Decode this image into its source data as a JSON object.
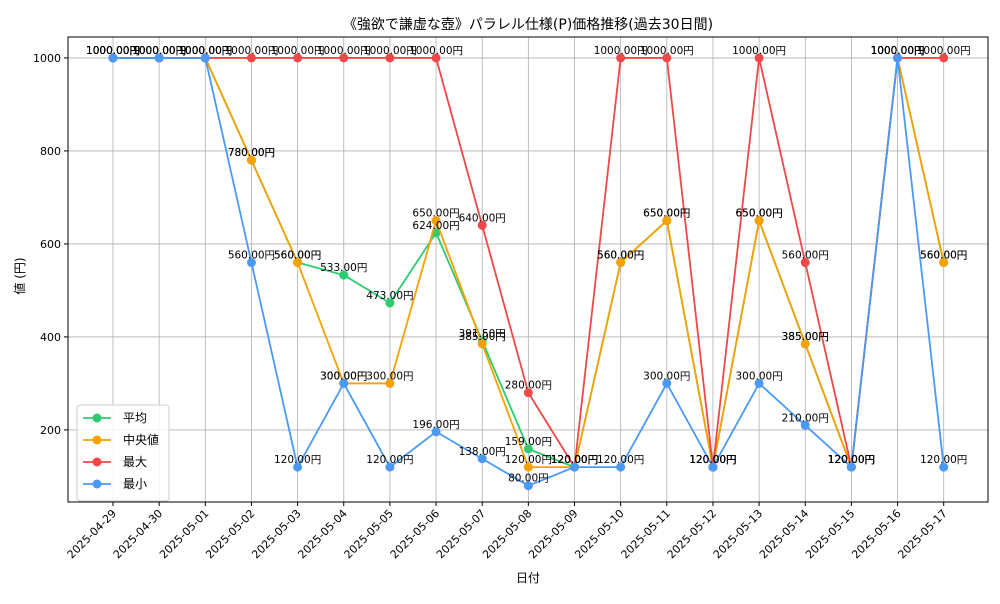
{
  "chart_data": {
    "type": "line",
    "title": "《強欲で謙虚な壺》パラレル仕様(P)価格推移(過去30日間)",
    "xlabel": "日付",
    "ylabel": "値 (円)",
    "ylim": [
      45,
      1045
    ],
    "yticks": [
      200,
      400,
      600,
      800,
      1000
    ],
    "grid": true,
    "legend_position": "bottom-left",
    "value_suffix": "円",
    "categories": [
      "2025-04-29",
      "2025-04-30",
      "2025-05-01",
      "2025-05-02",
      "2025-05-03",
      "2025-05-04",
      "2025-05-05",
      "2025-05-06",
      "2025-05-07",
      "2025-05-08",
      "2025-05-09",
      "2025-05-10",
      "2025-05-11",
      "2025-05-12",
      "2025-05-13",
      "2025-05-14",
      "2025-05-15",
      "2025-05-16",
      "2025-05-17"
    ],
    "series": [
      {
        "name": "平均",
        "color": "#2ecc71",
        "values": [
          1000,
          1000,
          1000,
          780,
          560,
          533,
          473,
          624,
          391.5,
          159,
          120,
          560,
          650,
          120,
          650,
          385,
          120,
          1000,
          560
        ]
      },
      {
        "name": "中央値",
        "color": "#f5a100",
        "values": [
          1000,
          1000,
          1000,
          780,
          560,
          300,
          300,
          650,
          385,
          120,
          120,
          560,
          650,
          120,
          650,
          385,
          120,
          1000,
          560
        ]
      },
      {
        "name": "最大",
        "color": "#f04848",
        "values": [
          1000,
          1000,
          1000,
          1000,
          1000,
          1000,
          1000,
          1000,
          640,
          280,
          120,
          1000,
          1000,
          120,
          1000,
          560,
          120,
          1000,
          1000
        ]
      },
      {
        "name": "最小",
        "color": "#4a9af5",
        "values": [
          1000,
          1000,
          1000,
          560,
          120,
          300,
          120,
          196,
          138,
          80,
          120,
          120,
          300,
          120,
          300,
          210,
          120,
          1000,
          120
        ]
      }
    ]
  }
}
